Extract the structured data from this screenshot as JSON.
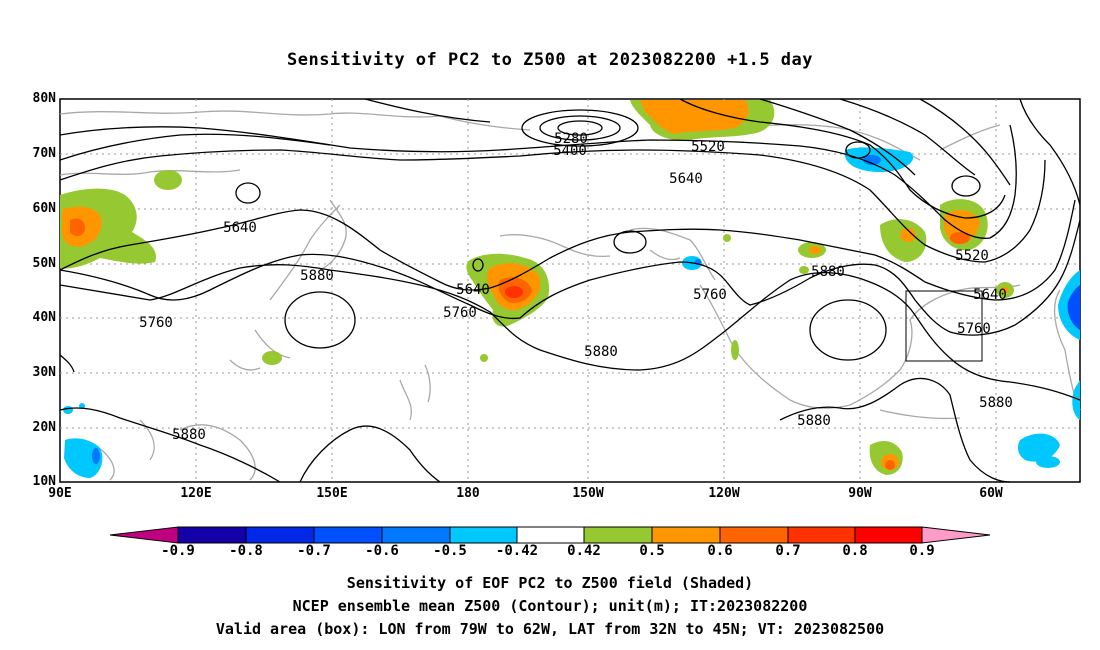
{
  "title": "Sensitivity of PC2 to Z500 at 2023082200 +1.5 day",
  "map": {
    "lat_ticks": [
      "80N",
      "70N",
      "60N",
      "50N",
      "40N",
      "30N",
      "20N",
      "10N"
    ],
    "lon_ticks": [
      "90E",
      "120E",
      "150E",
      "180",
      "150W",
      "120W",
      "90W",
      "60W"
    ],
    "contour_labels": [
      "5280",
      "5400",
      "5520",
      "5640",
      "5640",
      "5640",
      "5640",
      "5760",
      "5760",
      "5760",
      "5760",
      "5880",
      "5880",
      "5880",
      "5880",
      "5880",
      "5880",
      "5520"
    ],
    "valid_box": {
      "lon": [
        "79W",
        "62W"
      ],
      "lat": [
        "32N",
        "45N"
      ]
    }
  },
  "colorbar": {
    "labels": [
      "-0.9",
      "-0.8",
      "-0.7",
      "-0.6",
      "-0.5",
      "-0.42",
      "0.42",
      "0.5",
      "0.6",
      "0.7",
      "0.8",
      "0.9"
    ],
    "colors": [
      "#c0007f",
      "#1400a8",
      "#0028e6",
      "#0050ff",
      "#0078ff",
      "#00c8ff",
      "#ffffff",
      "#96c832",
      "#ff9600",
      "#ff6400",
      "#ff3200",
      "#ff0000",
      "#ff9bc8"
    ]
  },
  "captions": [
    "Sensitivity of EOF PC2 to Z500 field (Shaded)",
    "NCEP ensemble mean Z500 (Contour); unit(m); IT:2023082200",
    "Valid area (box): LON from 79W to 62W, LAT from 32N to 45N; VT: 2023082500"
  ]
}
